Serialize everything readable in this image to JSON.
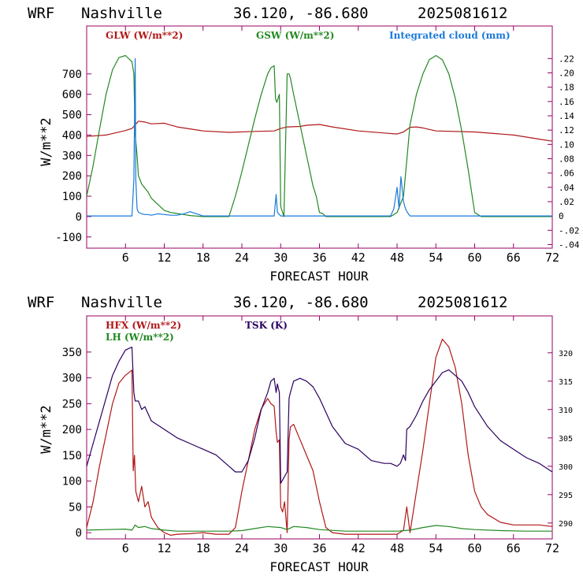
{
  "page": {
    "top_header": {
      "model": "WRF",
      "station": "Nashville",
      "coords": "36.120, -86.680",
      "run": "2025081612"
    },
    "bottom_header": {
      "model": "WRF",
      "station": "Nashville",
      "coords": "36.120, -86.680",
      "run": "2025081612"
    }
  },
  "colors": {
    "red": "#b01818",
    "green": "#228822",
    "blue": "#1a7ad9",
    "purple": "#2a0060",
    "frame": "#990066"
  },
  "chart_data": [
    {
      "type": "line",
      "title": "WRF Nashville 36.120, -86.680 2025081612",
      "xlabel": "FORECAST HOUR",
      "ylabel": "W/m**2",
      "xlim": [
        0,
        72
      ],
      "ylim": [
        -155,
        935
      ],
      "y2lim": [
        -0.045,
        0.2655
      ],
      "x_ticks": [
        6,
        12,
        18,
        24,
        30,
        36,
        42,
        48,
        54,
        60,
        66,
        72
      ],
      "y_ticks": [
        -100,
        0,
        100,
        200,
        300,
        400,
        500,
        600,
        700
      ],
      "y2_ticks": [
        -0.04,
        -0.02,
        0,
        0.02,
        0.04,
        0.06,
        0.08,
        0.1,
        0.12,
        0.14,
        0.16,
        0.18,
        0.2,
        0.22
      ],
      "y2_tick_labels": [
        "-.04",
        "-.02",
        "0",
        ".02",
        ".04",
        ".06",
        ".08",
        ".10",
        ".12",
        ".14",
        ".16",
        ".18",
        ".20",
        ".22"
      ],
      "series": [
        {
          "name": "GLW (W/m**2)",
          "axis": "left",
          "color": "#b01818",
          "x": [
            0,
            3,
            6,
            7,
            8,
            9,
            10,
            12,
            14,
            18,
            22,
            26,
            29,
            30,
            31,
            33,
            34,
            36,
            38,
            42,
            46,
            48,
            49,
            50,
            51,
            52,
            54,
            60,
            66,
            70,
            72
          ],
          "y": [
            393,
            400,
            422,
            432,
            468,
            464,
            455,
            458,
            440,
            420,
            413,
            418,
            420,
            432,
            440,
            442,
            448,
            452,
            440,
            420,
            410,
            405,
            415,
            438,
            440,
            435,
            420,
            415,
            400,
            380,
            370
          ]
        },
        {
          "name": "GSW (W/m**2)",
          "axis": "left",
          "color": "#228822",
          "x": [
            0,
            1,
            2,
            3,
            4,
            5,
            6,
            7,
            7.3,
            7.5,
            7.8,
            8,
            8.5,
            9,
            9.5,
            10,
            11,
            12,
            13,
            14,
            15,
            16,
            18,
            22,
            23,
            24,
            25,
            26,
            27,
            28,
            28.5,
            29,
            29.2,
            29.4,
            29.6,
            29.8,
            30,
            30.5,
            31,
            31.3,
            31.5,
            32,
            33,
            34,
            35,
            35.5,
            36,
            36.5,
            37,
            47,
            48,
            49,
            50,
            51,
            52,
            53,
            54,
            55,
            56,
            57,
            58,
            59,
            60,
            61,
            72
          ],
          "y": [
            100,
            250,
            430,
            600,
            720,
            780,
            790,
            760,
            700,
            400,
            300,
            200,
            160,
            140,
            120,
            90,
            60,
            30,
            20,
            15,
            10,
            5,
            0,
            0,
            100,
            220,
            350,
            480,
            600,
            700,
            730,
            740,
            580,
            560,
            580,
            600,
            50,
            0,
            700,
            700,
            680,
            600,
            450,
            300,
            150,
            100,
            20,
            15,
            0,
            0,
            20,
            100,
            450,
            600,
            700,
            770,
            790,
            770,
            700,
            580,
            420,
            230,
            20,
            0,
            0
          ]
        },
        {
          "name": "Integrated cloud (mm)",
          "axis": "right",
          "color": "#1a7ad9",
          "x": [
            0,
            7,
            7.3,
            7.5,
            7.6,
            7.8,
            8,
            8.3,
            8.5,
            9,
            9.5,
            10,
            11,
            12,
            13,
            14,
            15,
            16,
            17,
            18,
            29,
            29.3,
            29.5,
            29.8,
            30,
            47,
            47.5,
            48,
            48.3,
            48.6,
            49,
            49.3,
            49.6,
            50,
            72
          ],
          "y": [
            0,
            0,
            0.05,
            0.22,
            0.05,
            0.01,
            0.005,
            0.004,
            0.003,
            0.002,
            0.002,
            0.001,
            0.003,
            0.002,
            0.001,
            0.001,
            0.003,
            0.006,
            0.003,
            0,
            0,
            0.03,
            0.005,
            0.002,
            0,
            0,
            0.01,
            0.04,
            0.01,
            0.055,
            0.02,
            0.01,
            0.005,
            0,
            0
          ]
        }
      ]
    },
    {
      "type": "line",
      "title": "WRF Nashville 36.120, -86.680 2025081612",
      "xlabel": "FORECAST HOUR",
      "ylabel": "W/m**2",
      "xlim": [
        0,
        72
      ],
      "ylim": [
        -12,
        420
      ],
      "y2lim": [
        287.2,
        326.5
      ],
      "x_ticks": [
        6,
        12,
        18,
        24,
        30,
        36,
        42,
        48,
        54,
        60,
        66,
        72
      ],
      "y_ticks": [
        0,
        50,
        100,
        150,
        200,
        250,
        300,
        350
      ],
      "y2_ticks": [
        290,
        295,
        300,
        305,
        310,
        315,
        320
      ],
      "series": [
        {
          "name": "HFX (W/m**2)",
          "axis": "left",
          "color": "#b01818",
          "x": [
            0,
            1,
            2,
            3,
            4,
            5,
            6,
            7,
            7.2,
            7.4,
            7.6,
            8,
            8.5,
            9,
            9.5,
            10,
            10.5,
            11,
            12,
            13,
            14,
            16,
            18,
            20,
            22,
            23,
            24,
            25,
            26,
            27,
            28,
            28.5,
            29,
            29.3,
            29.5,
            29.8,
            30,
            30.3,
            30.6,
            31,
            31.3,
            31.5,
            32,
            33,
            34,
            35,
            36,
            37,
            38,
            40,
            44,
            48,
            49,
            49.5,
            50,
            51,
            52,
            53,
            54,
            55,
            56,
            57,
            58,
            59,
            60,
            61,
            62,
            64,
            66,
            68,
            70,
            72
          ],
          "y": [
            10,
            60,
            130,
            190,
            250,
            290,
            305,
            315,
            120,
            150,
            80,
            60,
            90,
            50,
            60,
            30,
            20,
            10,
            0,
            -5,
            -3,
            -2,
            0,
            -3,
            -3,
            10,
            80,
            140,
            200,
            240,
            260,
            250,
            245,
            195,
            175,
            180,
            50,
            40,
            60,
            0,
            180,
            205,
            210,
            180,
            150,
            120,
            60,
            10,
            0,
            -3,
            -3,
            -3,
            5,
            50,
            0,
            80,
            160,
            250,
            340,
            375,
            360,
            320,
            250,
            150,
            80,
            50,
            35,
            20,
            15,
            15,
            15,
            12
          ]
        },
        {
          "name": "LH (W/m**2)",
          "axis": "left",
          "color": "#228822",
          "x": [
            0,
            3,
            6,
            7,
            7.5,
            8,
            9,
            10,
            12,
            14,
            18,
            22,
            24,
            26,
            28,
            30,
            31,
            32,
            34,
            36,
            40,
            44,
            48,
            50,
            52,
            54,
            56,
            58,
            60,
            64,
            68,
            72
          ],
          "y": [
            5,
            6,
            7,
            5,
            15,
            10,
            12,
            8,
            5,
            3,
            3,
            3,
            4,
            8,
            12,
            10,
            6,
            12,
            10,
            6,
            3,
            3,
            3,
            5,
            10,
            14,
            12,
            8,
            6,
            4,
            3,
            3
          ]
        },
        {
          "name": "TSK (K)",
          "axis": "right",
          "color": "#2a0060",
          "x": [
            0,
            1,
            2,
            3,
            4,
            5,
            6,
            7,
            7.3,
            7.5,
            8,
            8.5,
            9,
            10,
            12,
            14,
            16,
            18,
            20,
            22,
            23,
            24,
            25,
            26,
            27,
            28,
            28.5,
            29,
            29.3,
            29.5,
            29.8,
            30,
            30.5,
            31,
            31.3,
            31.5,
            32,
            33,
            34,
            35,
            36,
            38,
            40,
            42,
            44,
            46,
            47,
            48,
            48.5,
            49,
            49.3,
            49.5,
            50,
            51,
            52,
            53,
            54,
            55,
            56,
            57,
            58,
            59,
            60,
            62,
            64,
            66,
            68,
            70,
            72
          ],
          "y": [
            300,
            304,
            308,
            312,
            316,
            318.5,
            320.5,
            321,
            313,
            311.5,
            311.5,
            310,
            310.5,
            308,
            306.5,
            305,
            304,
            303,
            302,
            300,
            299,
            299,
            301,
            305,
            310,
            313,
            315,
            315.5,
            313,
            314.5,
            313,
            297,
            298,
            299,
            312,
            313,
            315,
            315.5,
            315,
            314,
            312,
            307,
            304,
            303,
            301,
            300.5,
            300.5,
            300,
            300.5,
            302,
            301,
            306.5,
            307,
            309,
            311.5,
            313.5,
            315,
            316.5,
            317,
            316,
            315,
            313,
            310.5,
            307,
            304.5,
            303,
            301.5,
            300.5,
            299
          ]
        }
      ]
    }
  ]
}
